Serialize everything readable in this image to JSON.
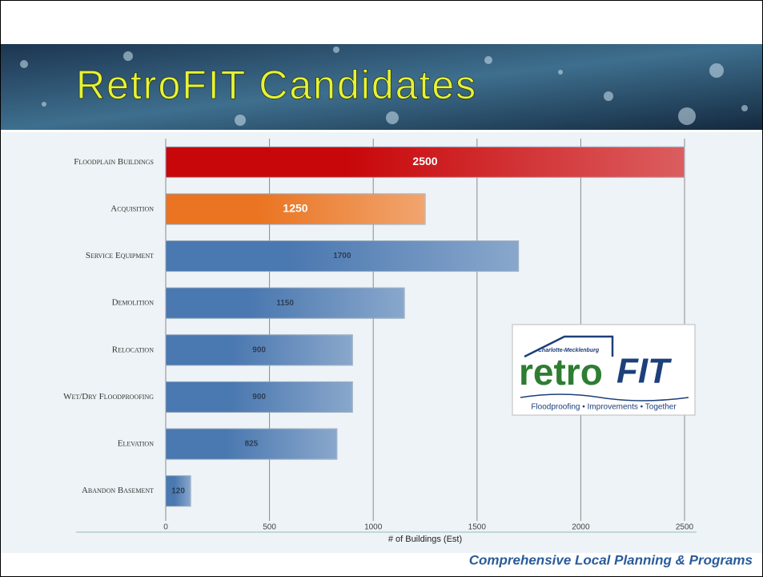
{
  "chart_data": {
    "type": "hbar",
    "title": "RetroFIT Candidates",
    "categories": [
      "Floodplain Buildings",
      "Acquisition",
      "Service Equipment",
      "Demolition",
      "Relocation",
      "Wet/Dry Floodproofing",
      "Elevation",
      "Abandon Basement"
    ],
    "values": [
      2500,
      1250,
      1700,
      1150,
      900,
      900,
      825,
      120
    ],
    "colors": [
      "#c8070a",
      "#ea7421",
      "#4a78b0",
      "#4a78b0",
      "#4a78b0",
      "#4a78b0",
      "#4a78b0",
      "#4a78b0"
    ],
    "xlim": [
      0,
      2500
    ],
    "xticks": [
      0,
      500,
      1000,
      1500,
      2000,
      2500
    ],
    "grid": true,
    "xlabel": "# of Buildings (Est)"
  },
  "footer": "Comprehensive Local Planning & Programs",
  "logo": {
    "org": "Charlotte-Mecklenburg",
    "word1": "retro",
    "word2": "FIT",
    "tagline": "Floodproofing • Improvements • Together"
  }
}
